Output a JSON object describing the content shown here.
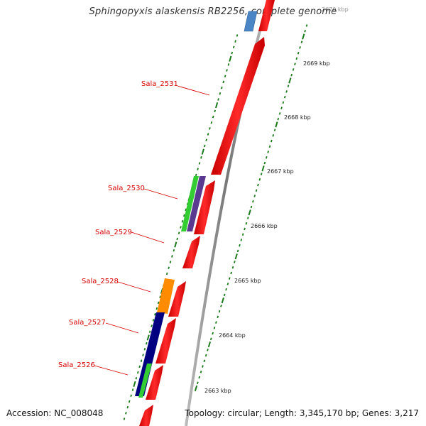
{
  "title": "Sphingopyxis alaskensis RB2256, complete genome",
  "footer": {
    "accession": "Accession: NC_008048",
    "topology": "Topology: circular; Length: 3,345,170 bp; Genes: 3,217"
  },
  "genes": [
    {
      "label": "Sala_2531"
    },
    {
      "label": "Sala_2530"
    },
    {
      "label": "Sala_2529"
    },
    {
      "label": "Sala_2528"
    },
    {
      "label": "Sala_2527"
    },
    {
      "label": "Sala_2526"
    }
  ],
  "ticks": [
    {
      "label": "2670 kbp"
    },
    {
      "label": "2669 kbp"
    },
    {
      "label": "2668 kbp"
    },
    {
      "label": "2667 kbp"
    },
    {
      "label": "2666 kbp"
    },
    {
      "label": "2665 kbp"
    },
    {
      "label": "2664 kbp"
    },
    {
      "label": "2663 kbp"
    }
  ],
  "colors": {
    "forward_cds": "#ff1a1a",
    "reverse_blue": "#000080",
    "light_blue": "#4a86c6",
    "green": "#33cc33",
    "orange": "#ff8c00",
    "purple": "#5a3a90",
    "ticks": "#1a7a1a",
    "backbone": "#888888"
  }
}
